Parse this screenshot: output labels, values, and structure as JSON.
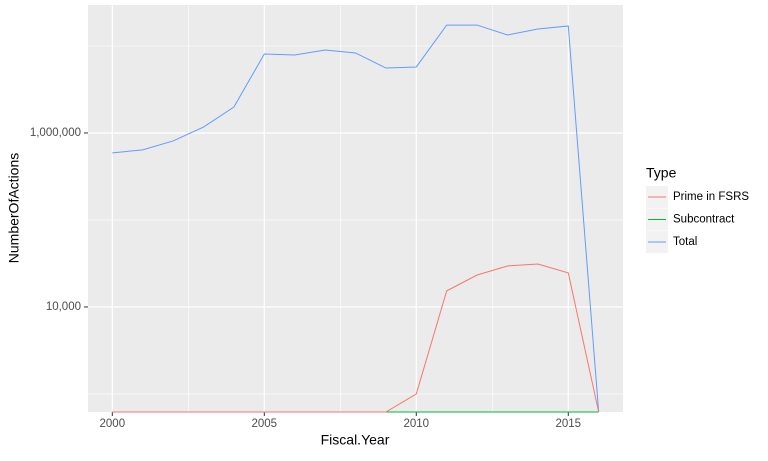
{
  "chart_data": {
    "type": "line",
    "x_label": "Fiscal.Year",
    "y_label": "NumberOfActions",
    "x": [
      2000,
      2001,
      2002,
      2003,
      2004,
      2005,
      2006,
      2007,
      2008,
      2009,
      2010,
      2011,
      2012,
      2013,
      2014,
      2015,
      2016
    ],
    "series": [
      {
        "name": "Prime in FSRS",
        "color": "#F8766D",
        "values": [
          620,
          620,
          620,
          620,
          620,
          620,
          620,
          620,
          620,
          620,
          1000,
          15300,
          23300,
          29600,
          31200,
          24600,
          620
        ]
      },
      {
        "name": "Subcontract",
        "color": "#00BA38",
        "values": [
          620,
          620,
          620,
          620,
          620,
          620,
          620,
          620,
          620,
          620,
          620,
          620,
          620,
          620,
          620,
          620,
          620
        ]
      },
      {
        "name": "Total",
        "color": "#619CFF",
        "values": [
          590000,
          640000,
          810000,
          1170000,
          1990000,
          8090000,
          7880000,
          9000000,
          8320000,
          5580000,
          5740000,
          17400000,
          17400000,
          13400000,
          15700000,
          17000000,
          620
        ]
      }
    ],
    "xlim": [
      1999.2,
      2016.8
    ],
    "xticks": [
      2000,
      2005,
      2010,
      2015
    ],
    "xminor": [
      2002.5,
      2007.5,
      2012.5
    ],
    "ylim": [
      620,
      29600000
    ],
    "yticks": [
      {
        "value": 10000,
        "label": "10,000"
      },
      {
        "value": 1000000,
        "label": "1,000,000"
      }
    ],
    "yminor": [
      1000,
      100000,
      10000000
    ],
    "y_scale": "log",
    "grid": true,
    "legend_title": "Type",
    "legend_position": "right"
  }
}
